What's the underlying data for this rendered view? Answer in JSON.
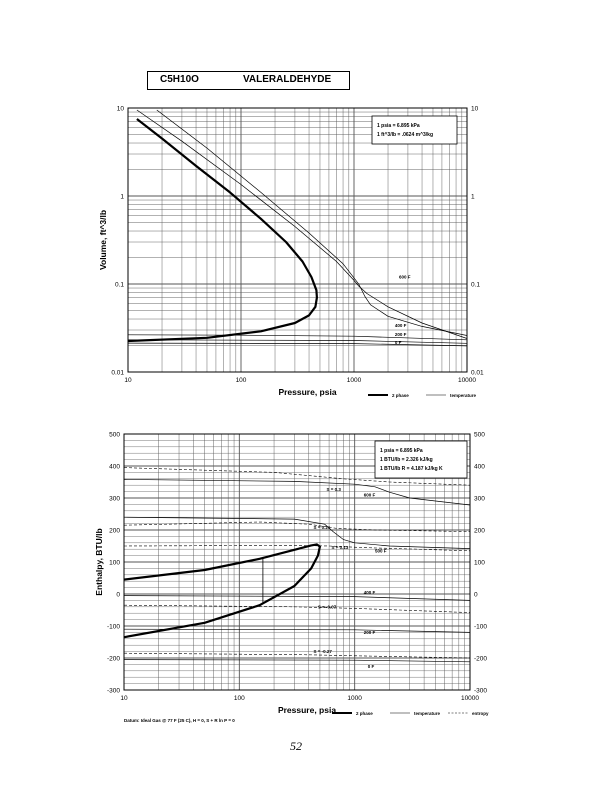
{
  "page": {
    "formula": "C5H10O",
    "name": "VALERALDEHYDE",
    "page_number": "52",
    "datum_note": "Datum: Ideal Gas @ 77 F (25 C), H = 0, S + R ln P = 0"
  },
  "colors": {
    "ink": "#000000",
    "grid": "#555555",
    "paper": "#ffffff"
  },
  "chart_data": [
    {
      "type": "line",
      "x_scale": "log",
      "y_scale": "log",
      "xlabel": "Pressure,  psia",
      "ylabel": "Volume, ft^3/lb",
      "xlim": [
        10,
        10000
      ],
      "ylim": [
        0.01,
        10
      ],
      "x_ticks": [
        "10",
        "100",
        "1000",
        "10000"
      ],
      "y_ticks": [
        "0.01",
        "0.1",
        "1",
        "10"
      ],
      "y_ticks_right": [
        "0.01",
        "0.1",
        "1",
        "10"
      ],
      "conversion_box": [
        "1 psia = 6.895 kPa",
        "1 ft^3/lb = .0624 m^3/kg"
      ],
      "legend": [
        {
          "label": "2 phase",
          "style": "thick"
        },
        {
          "label": "temperature",
          "style": "thin"
        }
      ],
      "dome": {
        "name": "2 phase",
        "points": [
          [
            12,
            7.5
          ],
          [
            20,
            4.5
          ],
          [
            40,
            2.2
          ],
          [
            80,
            1.1
          ],
          [
            150,
            0.55
          ],
          [
            250,
            0.3
          ],
          [
            350,
            0.18
          ],
          [
            420,
            0.12
          ],
          [
            465,
            0.085
          ],
          [
            470,
            0.07
          ],
          [
            455,
            0.055
          ],
          [
            400,
            0.044
          ],
          [
            300,
            0.036
          ],
          [
            150,
            0.029
          ],
          [
            50,
            0.0245
          ],
          [
            10,
            0.0225
          ]
        ]
      },
      "series": [
        {
          "name": "600 F",
          "points": [
            [
              12,
              9.5
            ],
            [
              30,
              4.2
            ],
            [
              100,
              1.35
            ],
            [
              300,
              0.45
            ],
            [
              700,
              0.18
            ],
            [
              1000,
              0.11
            ],
            [
              1100,
              0.095
            ],
            [
              1300,
              0.078
            ],
            [
              2000,
              0.055
            ],
            [
              4000,
              0.036
            ],
            [
              10000,
              0.024
            ]
          ],
          "label_at": [
            2500,
            0.115
          ]
        },
        {
          "name": "500 F",
          "points": [
            [
              18,
              9.5
            ],
            [
              50,
              3.5
            ],
            [
              150,
              1.1
            ],
            [
              400,
              0.38
            ],
            [
              800,
              0.17
            ],
            [
              1100,
              0.1
            ],
            [
              1250,
              0.072
            ],
            [
              1400,
              0.058
            ],
            [
              2000,
              0.043
            ],
            [
              4000,
              0.033
            ],
            [
              10000,
              0.026
            ]
          ]
        },
        {
          "name": "400 F",
          "points": [
            [
              10,
              0.0265
            ],
            [
              100,
              0.0262
            ],
            [
              1000,
              0.0255
            ],
            [
              10000,
              0.0232
            ]
          ],
          "label_at": [
            2300,
            0.0325
          ]
        },
        {
          "name": "200 F",
          "points": [
            [
              10,
              0.0232
            ],
            [
              1000,
              0.0228
            ],
            [
              10000,
              0.0212
            ]
          ],
          "label_at": [
            2300,
            0.0255
          ]
        },
        {
          "name": "0 F",
          "points": [
            [
              10,
              0.0213
            ],
            [
              1000,
              0.021
            ],
            [
              10000,
              0.0198
            ]
          ],
          "label_at": [
            2300,
            0.0208
          ]
        }
      ]
    },
    {
      "type": "line",
      "x_scale": "log",
      "y_scale": "linear",
      "xlabel": "Pressure,  psia",
      "ylabel": "Enthalpy, BTU/lb",
      "xlim": [
        10,
        10000
      ],
      "ylim": [
        -300,
        500
      ],
      "x_ticks": [
        "10",
        "100",
        "1000",
        "10000"
      ],
      "y_ticks": [
        "-300",
        "-200",
        "-100",
        "0",
        "100",
        "200",
        "300",
        "400",
        "500"
      ],
      "y_ticks_right": [
        "-300",
        "-200",
        "-100",
        "0",
        "100",
        "200",
        "300",
        "400",
        "500"
      ],
      "conversion_box": [
        "1 psia = 6.895 kPa",
        "1 BTU/lb = 2.326 kJ/kg",
        "1 BTU/lb R = 4.187 kJ/kg K"
      ],
      "legend": [
        {
          "label": "2 phase",
          "style": "thick"
        },
        {
          "label": "temperature",
          "style": "thin"
        },
        {
          "label": "entropy",
          "style": "dashed"
        }
      ],
      "dome": {
        "name": "2 phase",
        "points": [
          [
            10,
            45
          ],
          [
            50,
            75
          ],
          [
            150,
            110
          ],
          [
            300,
            138
          ],
          [
            420,
            152
          ],
          [
            470,
            155
          ],
          [
            500,
            148
          ],
          [
            480,
            120
          ],
          [
            420,
            80
          ],
          [
            300,
            25
          ],
          [
            150,
            -35
          ],
          [
            50,
            -90
          ],
          [
            10,
            -135
          ]
        ]
      },
      "tie_line": [
        [
          160,
          -30
        ],
        [
          160,
          115
        ]
      ],
      "series": [
        {
          "name": "600 F",
          "points": [
            [
              10,
              358
            ],
            [
              300,
              352
            ],
            [
              1000,
              343
            ],
            [
              1500,
              335
            ],
            [
              2000,
              318
            ],
            [
              3000,
              300
            ],
            [
              10000,
              278
            ]
          ],
          "label_at": [
            1200,
            305
          ]
        },
        {
          "name": "500 F",
          "points": [
            [
              10,
              240
            ],
            [
              300,
              234
            ],
            [
              550,
              218
            ],
            [
              650,
              195
            ],
            [
              800,
              170
            ],
            [
              1000,
              160
            ],
            [
              2000,
              150
            ],
            [
              10000,
              142
            ]
          ],
          "label_at": [
            1500,
            130
          ]
        },
        {
          "name": "400 F",
          "points": [
            [
              10,
              -5
            ],
            [
              1000,
              -8
            ],
            [
              10000,
              -20
            ]
          ],
          "label_at": [
            1200,
            0
          ]
        },
        {
          "name": "200 F",
          "points": [
            [
              10,
              -110
            ],
            [
              1000,
              -112
            ],
            [
              10000,
              -120
            ]
          ],
          "label_at": [
            1200,
            -125
          ]
        },
        {
          "name": "0 F",
          "points": [
            [
              10,
              -205
            ],
            [
              1000,
              -207
            ],
            [
              10000,
              -212
            ]
          ],
          "label_at": [
            1300,
            -232
          ]
        }
      ],
      "entropy_lines": [
        {
          "name": "S = 0.3",
          "points": [
            [
              10,
              395
            ],
            [
              200,
              380
            ],
            [
              800,
              360
            ],
            [
              2000,
              350
            ],
            [
              10000,
              340
            ]
          ],
          "label_at": [
            570,
            322
          ]
        },
        {
          "name": "S = 0.21",
          "points": [
            [
              10,
              215
            ],
            [
              150,
              225
            ],
            [
              400,
              218
            ],
            [
              700,
              205
            ],
            [
              1500,
              200
            ],
            [
              10000,
              195
            ]
          ],
          "label_at": [
            440,
            203
          ]
        },
        {
          "name": "S = 0.13",
          "points": [
            [
              10,
              150
            ],
            [
              300,
              152
            ],
            [
              600,
              150
            ],
            [
              1200,
              145
            ],
            [
              10000,
              135
            ]
          ],
          "label_at": [
            630,
            140
          ]
        },
        {
          "name": "S = -0.07",
          "points": [
            [
              10,
              -35
            ],
            [
              300,
              -40
            ],
            [
              1000,
              -45
            ],
            [
              10000,
              -58
            ]
          ],
          "label_at": [
            480,
            -45
          ]
        },
        {
          "name": "S = -0.27",
          "points": [
            [
              10,
              -185
            ],
            [
              400,
              -190
            ],
            [
              1000,
              -193
            ],
            [
              10000,
              -200
            ]
          ],
          "label_at": [
            440,
            -185
          ]
        }
      ]
    }
  ]
}
